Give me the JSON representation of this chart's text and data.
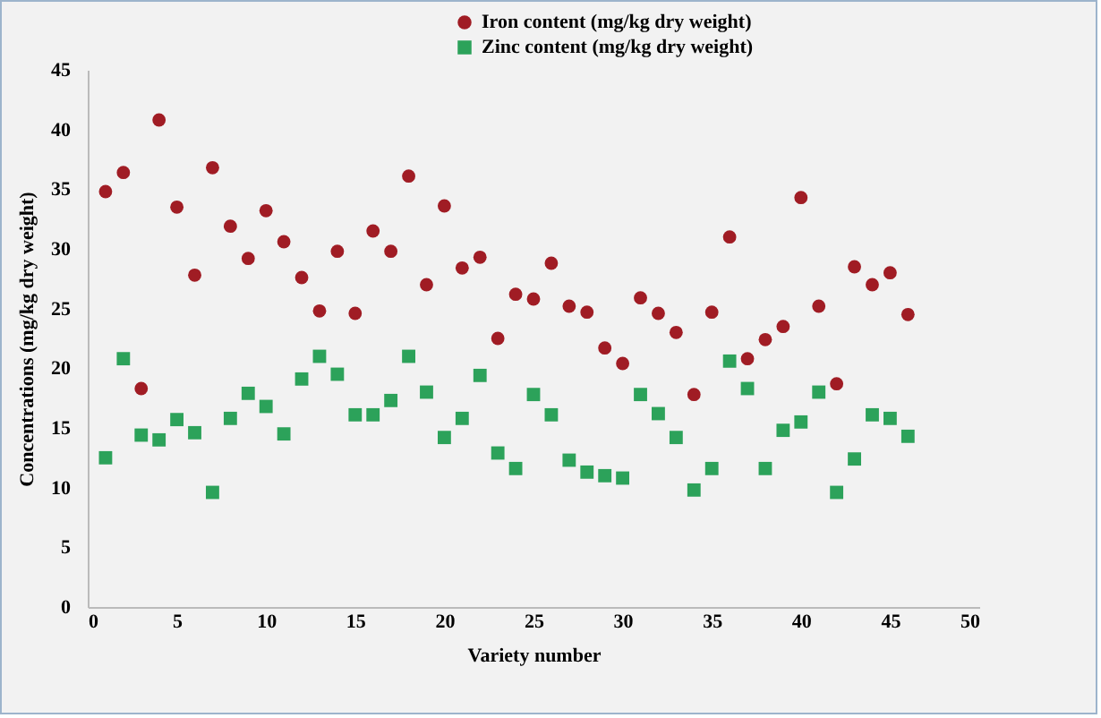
{
  "chart_data": {
    "type": "scatter",
    "xlabel": "Variety number",
    "ylabel": "Concentrations (mg/kg dry weight)",
    "x": [
      1,
      2,
      3,
      4,
      5,
      6,
      7,
      8,
      9,
      10,
      11,
      12,
      13,
      14,
      15,
      16,
      17,
      18,
      19,
      20,
      21,
      22,
      23,
      24,
      25,
      26,
      27,
      28,
      29,
      30,
      31,
      32,
      33,
      34,
      35,
      36,
      37,
      38,
      39,
      40,
      41,
      42,
      43,
      44,
      45,
      46
    ],
    "series": [
      {
        "name": "Iron  content (mg/kg dry weight)",
        "color": "#a01c24",
        "marker": "circle",
        "values": [
          34.8,
          36.4,
          18.3,
          40.8,
          33.5,
          27.8,
          36.8,
          31.9,
          29.2,
          33.2,
          30.6,
          27.6,
          24.8,
          29.8,
          24.6,
          31.5,
          29.8,
          36.1,
          27.0,
          33.6,
          28.4,
          29.3,
          22.5,
          26.2,
          25.8,
          28.8,
          25.2,
          24.7,
          21.7,
          20.4,
          25.9,
          24.6,
          23.0,
          17.8,
          24.7,
          31.0,
          20.8,
          22.4,
          23.5,
          34.3,
          25.2,
          18.7,
          28.5,
          27.0,
          28.0,
          24.5
        ]
      },
      {
        "name": "Zinc content  (mg/kg dry weight)",
        "color": "#2ca25a",
        "marker": "square",
        "values": [
          12.5,
          20.8,
          14.4,
          14.0,
          15.7,
          14.6,
          9.6,
          15.8,
          17.9,
          16.8,
          14.5,
          19.1,
          21.0,
          19.5,
          16.1,
          16.1,
          17.3,
          21.0,
          18.0,
          14.2,
          15.8,
          19.4,
          12.9,
          11.6,
          17.8,
          16.1,
          12.3,
          11.3,
          11.0,
          10.8,
          17.8,
          16.2,
          14.2,
          9.8,
          11.6,
          20.6,
          18.3,
          11.6,
          14.8,
          15.5,
          18.0,
          9.6,
          12.4,
          16.1,
          15.8,
          14.3
        ]
      }
    ],
    "xlim": [
      0,
      50
    ],
    "xticks": [
      0,
      5,
      10,
      15,
      20,
      25,
      30,
      35,
      40,
      45,
      50
    ],
    "ylim": [
      0,
      45
    ],
    "yticks": [
      0,
      5,
      10,
      15,
      20,
      25,
      30,
      35,
      40,
      45
    ],
    "legend": "top right"
  }
}
